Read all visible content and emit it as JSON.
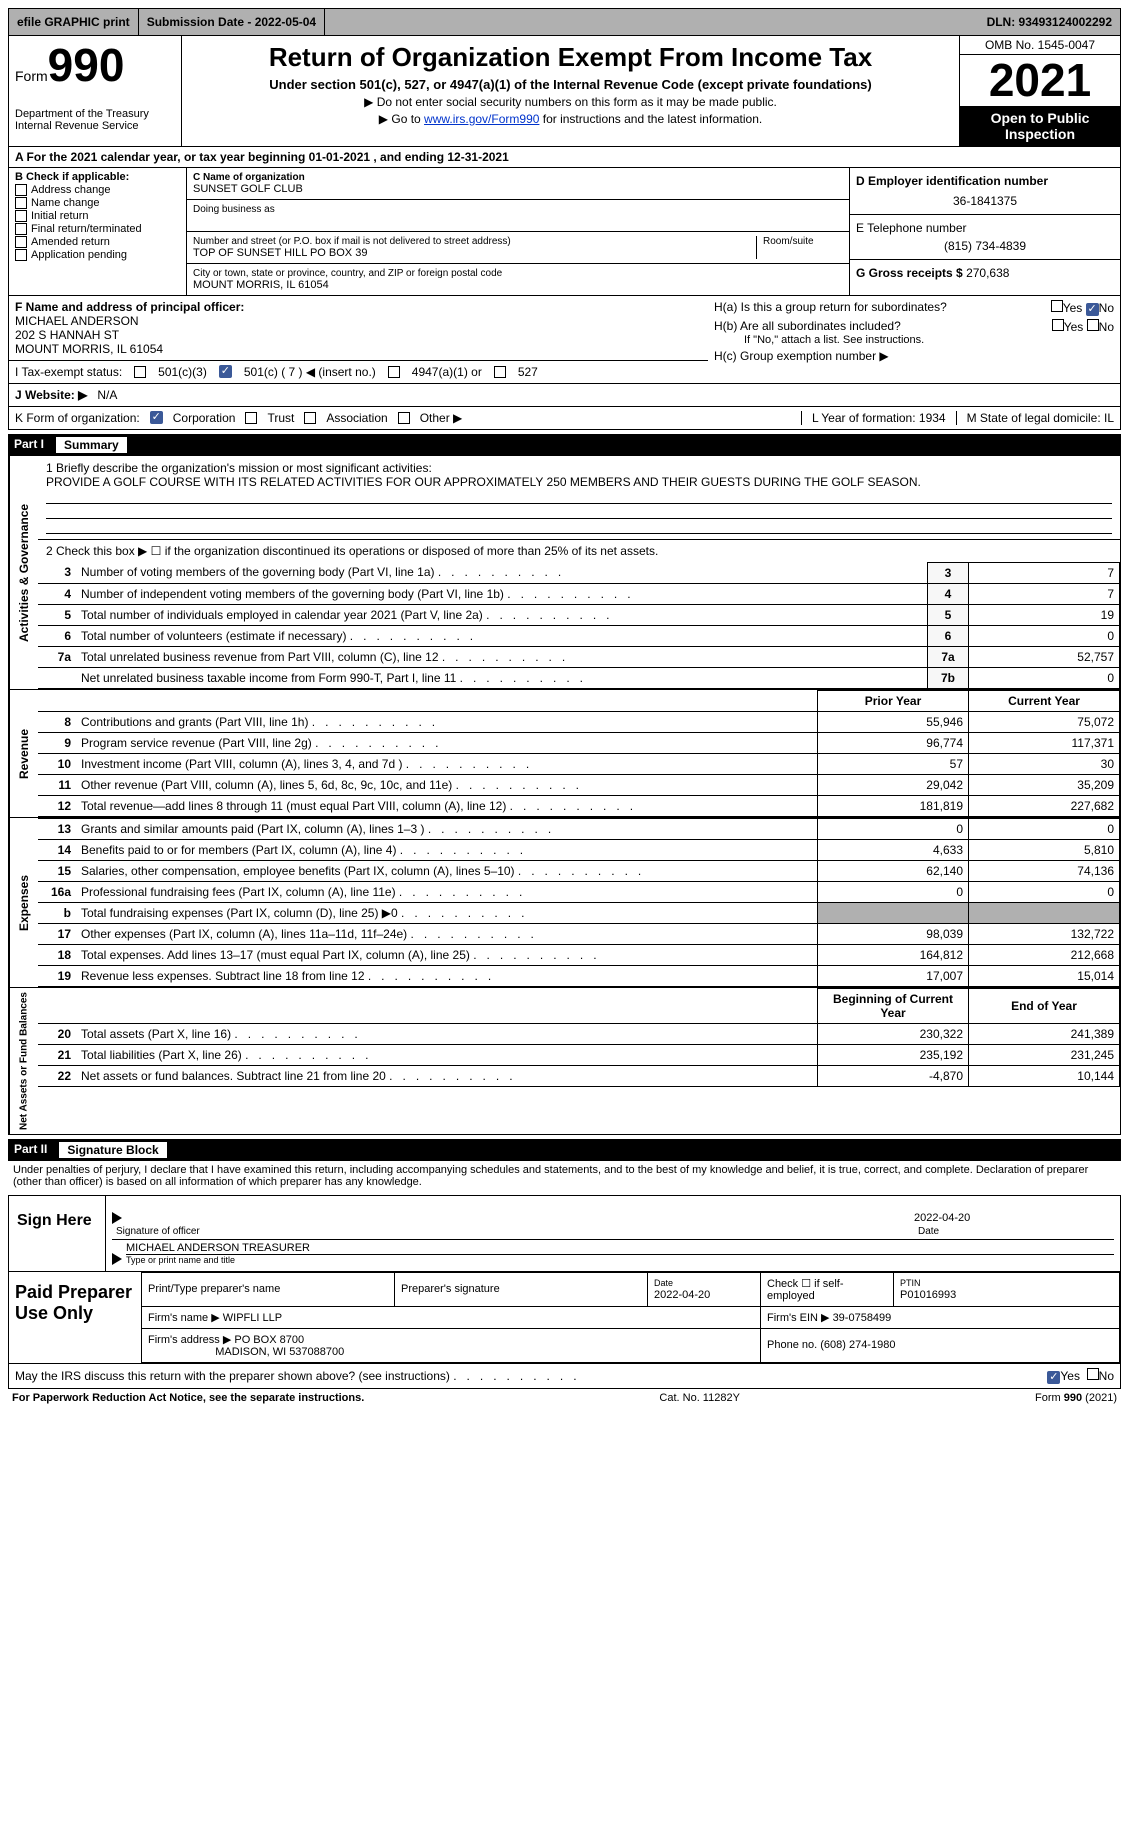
{
  "topbar": {
    "efile": "efile GRAPHIC print",
    "submission": "Submission Date - 2022-05-04",
    "dln": "DLN: 93493124002292"
  },
  "header": {
    "form_word": "Form",
    "form_num": "990",
    "dept": "Department of the Treasury Internal Revenue Service",
    "title": "Return of Organization Exempt From Income Tax",
    "subtitle": "Under section 501(c), 527, or 4947(a)(1) of the Internal Revenue Code (except private foundations)",
    "note1": "▶ Do not enter social security numbers on this form as it may be made public.",
    "note2_pre": "▶ Go to ",
    "note2_link": "www.irs.gov/Form990",
    "note2_post": " for instructions and the latest information.",
    "omb": "OMB No. 1545-0047",
    "year": "2021",
    "inspect": "Open to Public Inspection"
  },
  "line_a": "A For the 2021 calendar year, or tax year beginning 01-01-2021    , and ending 12-31-2021",
  "section_b": {
    "label": "B Check if applicable:",
    "opts": [
      "Address change",
      "Name change",
      "Initial return",
      "Final return/terminated",
      "Amended return",
      "Application pending"
    ],
    "c_label": "C Name of organization",
    "c_name": "SUNSET GOLF CLUB",
    "dba_label": "Doing business as",
    "addr_label": "Number and street (or P.O. box if mail is not delivered to street address)",
    "room": "Room/suite",
    "addr": "TOP OF SUNSET HILL PO BOX 39",
    "city_label": "City or town, state or province, country, and ZIP or foreign postal code",
    "city": "MOUNT MORRIS, IL  61054",
    "d_label": "D Employer identification number",
    "ein": "36-1841375",
    "e_label": "E Telephone number",
    "phone": "(815) 734-4839",
    "g_label": "G Gross receipts $",
    "gross": "270,638"
  },
  "fgh": {
    "f_label": "F  Name and address of principal officer:",
    "f_name": "MICHAEL ANDERSON",
    "f_addr1": "202 S HANNAH ST",
    "f_addr2": "MOUNT MORRIS, IL  61054",
    "ha": "H(a)  Is this a group return for subordinates?",
    "hb": "H(b)  Are all subordinates included?",
    "hb_note": "If \"No,\" attach a list. See instructions.",
    "hc": "H(c)  Group exemption number ▶",
    "yes": "Yes",
    "no": "No"
  },
  "i_row": {
    "label": "I  Tax-exempt status:",
    "o1": "501(c)(3)",
    "o2": "501(c) ( 7 ) ◀ (insert no.)",
    "o3": "4947(a)(1) or",
    "o4": "527"
  },
  "j_row": {
    "label": "J  Website: ▶",
    "val": "N/A"
  },
  "k_row": {
    "label": "K Form of organization:",
    "o1": "Corporation",
    "o2": "Trust",
    "o3": "Association",
    "o4": "Other ▶",
    "l": "L Year of formation: 1934",
    "m": "M State of legal domicile: IL"
  },
  "part1": {
    "num": "Part I",
    "title": "Summary",
    "q1_label": "1  Briefly describe the organization's mission or most significant activities:",
    "q1": "PROVIDE A GOLF COURSE WITH ITS RELATED ACTIVITIES FOR OUR APPROXIMATELY 250 MEMBERS AND THEIR GUESTS DURING THE GOLF SEASON.",
    "q2": "2   Check this box ▶ ☐  if the organization discontinued its operations or disposed of more than 25% of its net assets.",
    "rows_ag": [
      {
        "n": "3",
        "t": "Number of voting members of the governing body (Part VI, line 1a)",
        "b": "3",
        "v": "7"
      },
      {
        "n": "4",
        "t": "Number of independent voting members of the governing body (Part VI, line 1b)",
        "b": "4",
        "v": "7"
      },
      {
        "n": "5",
        "t": "Total number of individuals employed in calendar year 2021 (Part V, line 2a)",
        "b": "5",
        "v": "19"
      },
      {
        "n": "6",
        "t": "Total number of volunteers (estimate if necessary)",
        "b": "6",
        "v": "0"
      },
      {
        "n": "7a",
        "t": "Total unrelated business revenue from Part VIII, column (C), line 12",
        "b": "7a",
        "v": "52,757"
      },
      {
        "n": "",
        "t": "Net unrelated business taxable income from Form 990-T, Part I, line 11",
        "b": "7b",
        "v": "0"
      }
    ],
    "prior": "Prior Year",
    "current": "Current Year",
    "rev": [
      {
        "n": "8",
        "t": "Contributions and grants (Part VIII, line 1h)",
        "p": "55,946",
        "c": "75,072"
      },
      {
        "n": "9",
        "t": "Program service revenue (Part VIII, line 2g)",
        "p": "96,774",
        "c": "117,371"
      },
      {
        "n": "10",
        "t": "Investment income (Part VIII, column (A), lines 3, 4, and 7d )",
        "p": "57",
        "c": "30"
      },
      {
        "n": "11",
        "t": "Other revenue (Part VIII, column (A), lines 5, 6d, 8c, 9c, 10c, and 11e)",
        "p": "29,042",
        "c": "35,209"
      },
      {
        "n": "12",
        "t": "Total revenue—add lines 8 through 11 (must equal Part VIII, column (A), line 12)",
        "p": "181,819",
        "c": "227,682"
      }
    ],
    "exp": [
      {
        "n": "13",
        "t": "Grants and similar amounts paid (Part IX, column (A), lines 1–3 )",
        "p": "0",
        "c": "0"
      },
      {
        "n": "14",
        "t": "Benefits paid to or for members (Part IX, column (A), line 4)",
        "p": "4,633",
        "c": "5,810"
      },
      {
        "n": "15",
        "t": "Salaries, other compensation, employee benefits (Part IX, column (A), lines 5–10)",
        "p": "62,140",
        "c": "74,136"
      },
      {
        "n": "16a",
        "t": "Professional fundraising fees (Part IX, column (A), line 11e)",
        "p": "0",
        "c": "0"
      },
      {
        "n": "b",
        "t": "Total fundraising expenses (Part IX, column (D), line 25) ▶0",
        "p": "GRAY",
        "c": "GRAY"
      },
      {
        "n": "17",
        "t": "Other expenses (Part IX, column (A), lines 11a–11d, 11f–24e)",
        "p": "98,039",
        "c": "132,722"
      },
      {
        "n": "18",
        "t": "Total expenses. Add lines 13–17 (must equal Part IX, column (A), line 25)",
        "p": "164,812",
        "c": "212,668"
      },
      {
        "n": "19",
        "t": "Revenue less expenses. Subtract line 18 from line 12",
        "p": "17,007",
        "c": "15,014"
      }
    ],
    "beg": "Beginning of Current Year",
    "end": "End of Year",
    "net": [
      {
        "n": "20",
        "t": "Total assets (Part X, line 16)",
        "p": "230,322",
        "c": "241,389"
      },
      {
        "n": "21",
        "t": "Total liabilities (Part X, line 26)",
        "p": "235,192",
        "c": "231,245"
      },
      {
        "n": "22",
        "t": "Net assets or fund balances. Subtract line 21 from line 20",
        "p": "-4,870",
        "c": "10,144"
      }
    ],
    "v_ag": "Activities & Governance",
    "v_rev": "Revenue",
    "v_exp": "Expenses",
    "v_net": "Net Assets or Fund Balances"
  },
  "part2": {
    "num": "Part II",
    "title": "Signature Block",
    "decl": "Under penalties of perjury, I declare that I have examined this return, including accompanying schedules and statements, and to the best of my knowledge and belief, it is true, correct, and complete. Declaration of preparer (other than officer) is based on all information of which preparer has any knowledge.",
    "sign": "Sign Here",
    "sig_officer": "Signature of officer",
    "date": "Date",
    "date_val": "2022-04-20",
    "name": "MICHAEL ANDERSON  TREASURER",
    "name_label": "Type or print name and title",
    "paid": "Paid Preparer Use Only",
    "h1": "Print/Type preparer's name",
    "h2": "Preparer's signature",
    "h3_l": "Date",
    "h3": "2022-04-20",
    "h4": "Check ☐ if self-employed",
    "h5_l": "PTIN",
    "h5": "P01016993",
    "firm_l": "Firm's name    ▶",
    "firm": "WIPFLI LLP",
    "ein_l": "Firm's EIN ▶",
    "ein": "39-0758499",
    "addr_l": "Firm's address ▶",
    "addr": "PO BOX 8700",
    "addr2": "MADISON, WI  537088700",
    "ph_l": "Phone no.",
    "ph": "(608) 274-1980",
    "may": "May the IRS discuss this return with the preparer shown above? (see instructions)"
  },
  "footer": {
    "l": "For Paperwork Reduction Act Notice, see the separate instructions.",
    "m": "Cat. No. 11282Y",
    "r": "Form 990 (2021)"
  }
}
